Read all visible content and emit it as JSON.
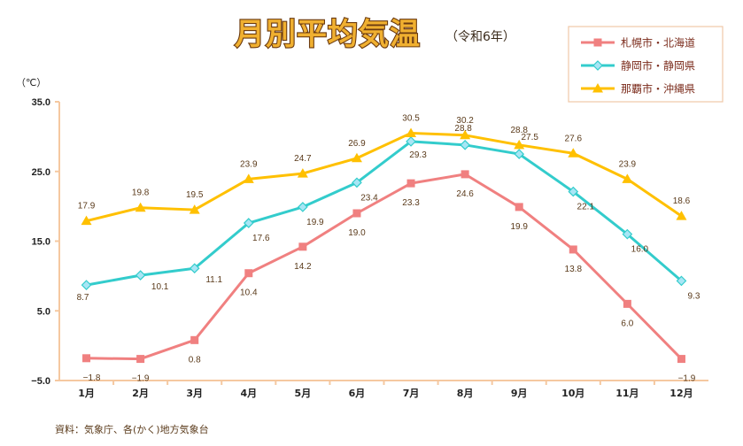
{
  "chart_data": {
    "type": "line",
    "title": "月別平均気温",
    "subtitle": "（令和6年）",
    "unit_label": "（℃）",
    "categories": [
      "1月",
      "2月",
      "3月",
      "4月",
      "5月",
      "6月",
      "7月",
      "8月",
      "9月",
      "10月",
      "11月",
      "12月"
    ],
    "ylim": [
      -5,
      35
    ],
    "yticks": [
      -5.0,
      5.0,
      15.0,
      25.0,
      35.0
    ],
    "ytick_labels": [
      "−5.0",
      "5.0",
      "15.0",
      "25.0",
      "35.0"
    ],
    "grid": false,
    "legend_position": "top-right",
    "series": [
      {
        "name": "札幌市・北海道",
        "color": "#f08080",
        "marker": "square",
        "values": [
          -1.8,
          -1.9,
          0.8,
          10.4,
          14.2,
          19.0,
          23.3,
          24.6,
          19.9,
          13.8,
          6.0,
          -1.9
        ],
        "labels": [
          "−1.8",
          "−1.9",
          "0.8",
          "10.4",
          "14.2",
          "19.0",
          "23.3",
          "24.6",
          "19.9",
          "13.8",
          "6.0",
          "−1.9"
        ]
      },
      {
        "name": "静岡市・静岡県",
        "color": "#33cccc",
        "marker": "diamond",
        "values": [
          8.7,
          10.1,
          11.1,
          17.6,
          19.9,
          23.4,
          29.3,
          28.8,
          27.5,
          22.1,
          16.0,
          9.3
        ],
        "labels": [
          "8.7",
          "10.1",
          "11.1",
          "17.6",
          "19.9",
          "23.4",
          "29.3",
          "28.8",
          "27.5",
          "22.1",
          "16.0",
          "9.3"
        ]
      },
      {
        "name": "那覇市・沖縄県",
        "color": "#ffc000",
        "marker": "triangle",
        "values": [
          17.9,
          19.8,
          19.5,
          23.9,
          24.7,
          26.9,
          30.5,
          30.2,
          28.8,
          27.6,
          23.9,
          18.6
        ],
        "labels": [
          "17.9",
          "19.8",
          "19.5",
          "23.9",
          "24.7",
          "26.9",
          "30.5",
          "30.2",
          "28.8",
          "27.6",
          "23.9",
          "18.6"
        ]
      }
    ],
    "source": "資料：気象庁、各(かく)地方気象台"
  }
}
